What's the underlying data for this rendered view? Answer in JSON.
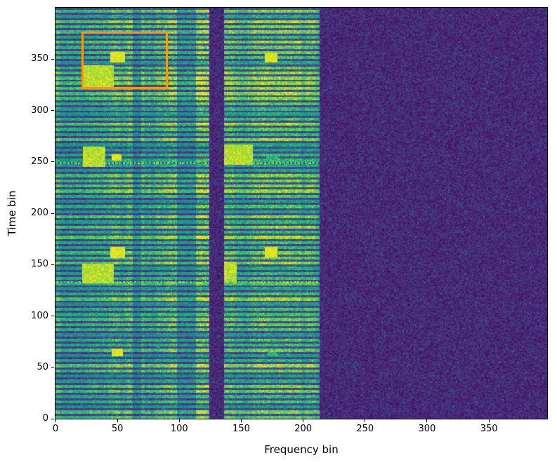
{
  "figure": {
    "background": "#ffffff",
    "frame_color": "#000000"
  },
  "chart_data": {
    "type": "heatmap",
    "title": "",
    "xlabel": "Frequency bin",
    "ylabel": "Time bin",
    "xlim": [
      0,
      397
    ],
    "ylim": [
      0,
      400
    ],
    "xticks": [
      0,
      50,
      100,
      150,
      200,
      250,
      300,
      350
    ],
    "yticks": [
      0,
      50,
      100,
      150,
      200,
      250,
      300,
      350
    ],
    "grid": false,
    "legend": null,
    "colormap": "viridis",
    "colormap_stops": [
      "#440154",
      "#482475",
      "#414487",
      "#355f8d",
      "#2a788e",
      "#21918c",
      "#22a884",
      "#44bf70",
      "#7ad151",
      "#bddf26",
      "#fde725"
    ],
    "bands": [
      {
        "name": "active-band-1",
        "x": [
          0,
          124
        ],
        "texture": "striped"
      },
      {
        "name": "quiet-gap",
        "x": [
          124,
          136
        ],
        "texture": "noise-floor"
      },
      {
        "name": "active-band-2",
        "x": [
          136,
          213
        ],
        "texture": "striped"
      },
      {
        "name": "noise-floor",
        "x": [
          213,
          397
        ],
        "texture": "noise-floor"
      }
    ],
    "stripe_period_time_bins": 5,
    "dim_columns": [
      [
        62,
        68
      ],
      [
        98,
        112
      ]
    ],
    "dashed_lines": [
      {
        "y": 132,
        "x": [
          0,
          213
        ]
      },
      {
        "y": 248,
        "x": [
          0,
          213
        ]
      }
    ],
    "blobs": [
      {
        "x": [
          21,
          47
        ],
        "y": [
          322,
          344
        ],
        "level": "high"
      },
      {
        "x": [
          44,
          56
        ],
        "y": [
          347,
          357
        ],
        "level": "peak"
      },
      {
        "x": [
          22,
          40
        ],
        "y": [
          245,
          265
        ],
        "level": "high"
      },
      {
        "x": [
          45,
          53
        ],
        "y": [
          251,
          257
        ],
        "level": "peak"
      },
      {
        "x": [
          21,
          47
        ],
        "y": [
          132,
          151
        ],
        "level": "high"
      },
      {
        "x": [
          44,
          56
        ],
        "y": [
          156,
          167
        ],
        "level": "peak"
      },
      {
        "x": [
          45,
          54
        ],
        "y": [
          61,
          68
        ],
        "level": "peak"
      },
      {
        "x": [
          169,
          179
        ],
        "y": [
          347,
          356
        ],
        "level": "peak"
      },
      {
        "x": [
          136,
          159
        ],
        "y": [
          247,
          267
        ],
        "level": "high"
      },
      {
        "x": [
          170,
          180
        ],
        "y": [
          250,
          257
        ],
        "level": "medium"
      },
      {
        "x": [
          136,
          146
        ],
        "y": [
          133,
          153
        ],
        "level": "high"
      },
      {
        "x": [
          169,
          179
        ],
        "y": [
          157,
          167
        ],
        "level": "peak"
      },
      {
        "x": [
          171,
          179
        ],
        "y": [
          61,
          66
        ],
        "level": "medium"
      }
    ],
    "annotation_box": {
      "x": [
        22,
        90
      ],
      "y": [
        322,
        376
      ],
      "color": "#eb9c17",
      "linewidth": 3
    }
  }
}
